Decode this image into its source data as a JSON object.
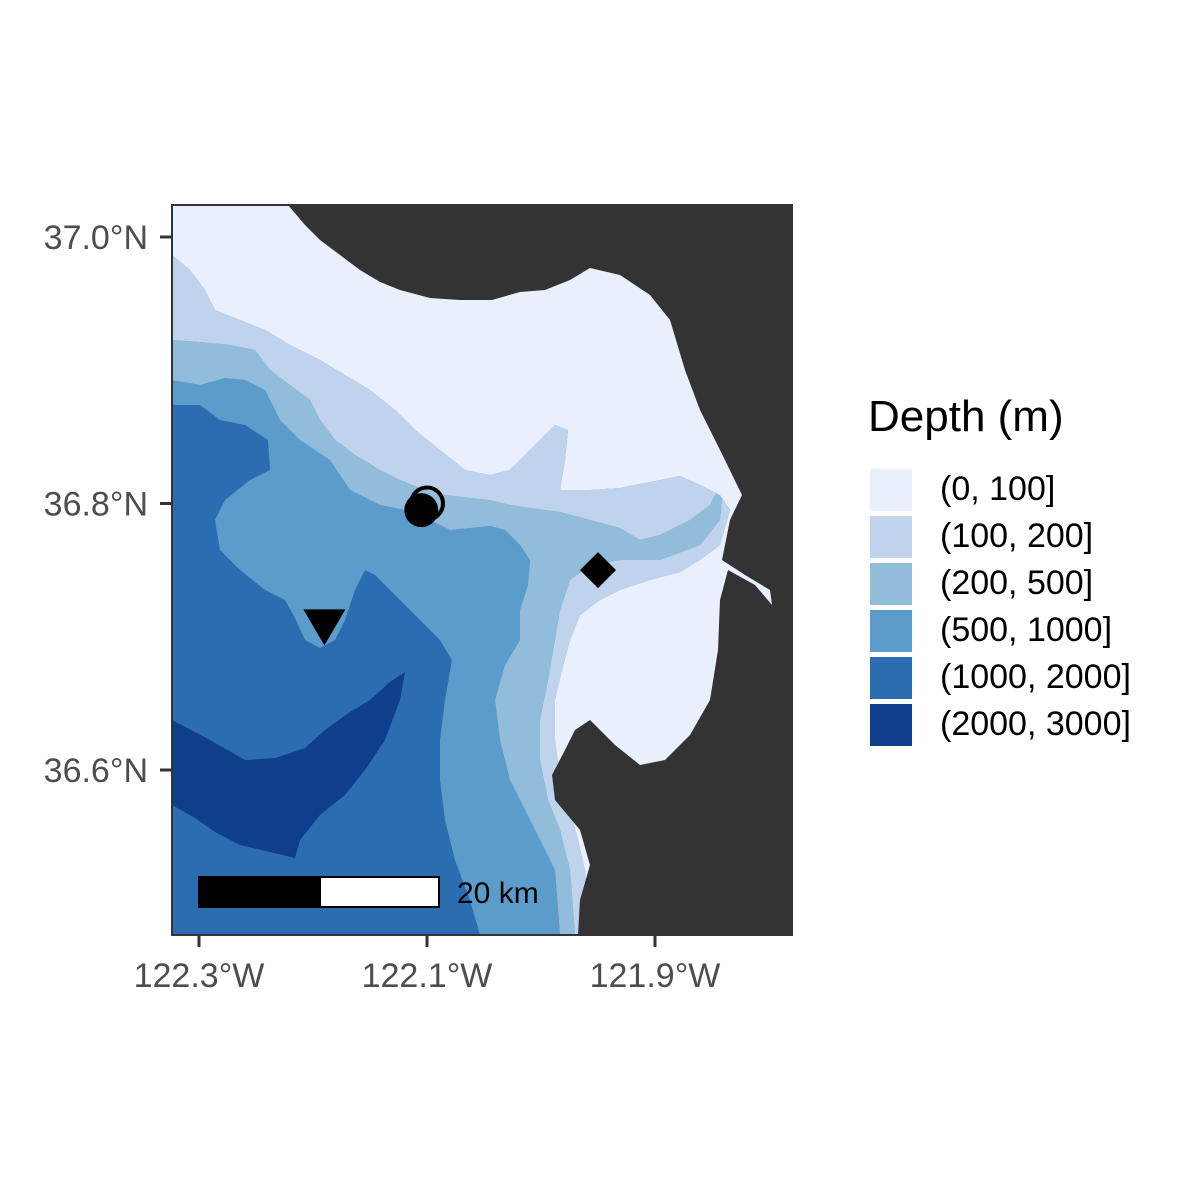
{
  "map": {
    "y_ticks": [
      {
        "value": 37.0,
        "label": "37.0°N"
      },
      {
        "value": 36.8,
        "label": "36.8°N"
      },
      {
        "value": 36.6,
        "label": "36.6°N"
      }
    ],
    "x_ticks": [
      {
        "value": -122.3,
        "label": "122.3°W"
      },
      {
        "value": -122.1,
        "label": "122.1°W"
      },
      {
        "value": -121.9,
        "label": "121.9°W"
      }
    ],
    "land_color": "#333333",
    "scale_bar": {
      "label": "20 km"
    },
    "markers": [
      {
        "symbol": "open-circle",
        "lon": -122.1,
        "lat": 36.8
      },
      {
        "symbol": "filled-circle",
        "lon": -122.105,
        "lat": 36.795
      },
      {
        "symbol": "filled-diamond",
        "lon": -121.95,
        "lat": 36.75
      },
      {
        "symbol": "filled-down-triangle",
        "lon": -122.19,
        "lat": 36.71
      }
    ]
  },
  "legend": {
    "title": "Depth (m)",
    "items": [
      {
        "label": "(0, 100]",
        "color": "#e9effc"
      },
      {
        "label": "(100, 200]",
        "color": "#bfd4ec"
      },
      {
        "label": "(200, 500]",
        "color": "#92bdda"
      },
      {
        "label": "(500, 1000]",
        "color": "#5b9ccb"
      },
      {
        "label": "(1000, 2000]",
        "color": "#2c6db1"
      },
      {
        "label": "(2000, 3000]",
        "color": "#0e3e8c"
      }
    ]
  }
}
